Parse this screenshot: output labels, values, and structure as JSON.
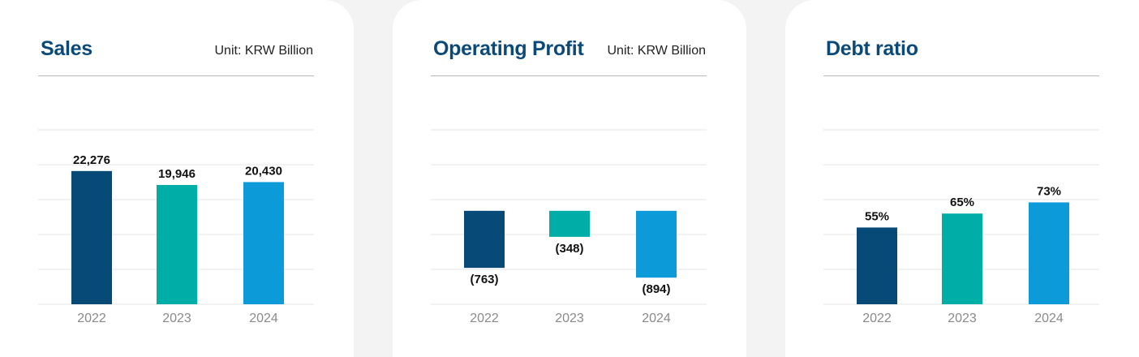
{
  "colors": {
    "bar_2022": "#074a77",
    "bar_2023": "#00ada7",
    "bar_2024": "#0c9ad8",
    "title": "#0b4a78",
    "grid": "#e6e6e6"
  },
  "chart_data": [
    {
      "type": "bar",
      "title": "Sales",
      "unit": "Unit: KRW Billion",
      "categories": [
        "2022",
        "2023",
        "2024"
      ],
      "values": [
        22276,
        19946,
        20430
      ],
      "labels": [
        "22,276",
        "19,946",
        "20,430"
      ],
      "ylim": [
        0,
        35000
      ],
      "grid": true
    },
    {
      "type": "bar",
      "title": "Operating Profit",
      "unit": "Unit: KRW Billion",
      "categories": [
        "2022",
        "2023",
        "2024"
      ],
      "values": [
        -763,
        -348,
        -894
      ],
      "labels": [
        "(763)",
        "(348)",
        "(894)"
      ],
      "ylim": [
        -1250,
        1550
      ],
      "grid": true
    },
    {
      "type": "bar",
      "title": "Debt ratio",
      "unit": "",
      "categories": [
        "2022",
        "2023",
        "2024"
      ],
      "values": [
        55,
        65,
        73
      ],
      "labels": [
        "55%",
        "65%",
        "73%"
      ],
      "ylim": [
        0,
        150
      ],
      "grid": true
    }
  ]
}
